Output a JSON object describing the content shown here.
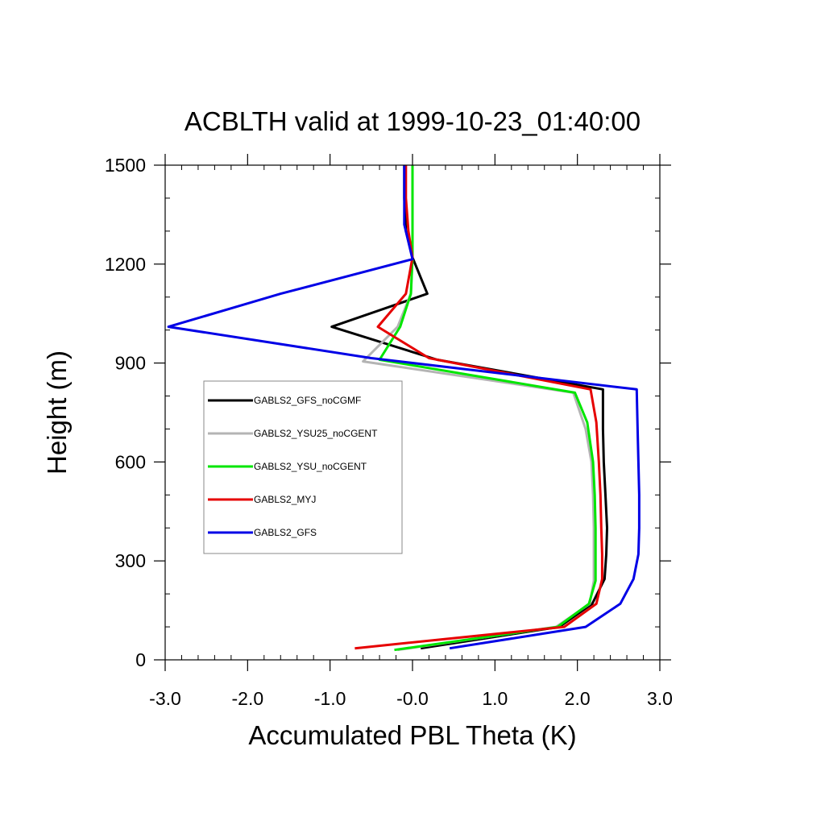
{
  "chart_data": {
    "type": "line",
    "title": "ACBLTH valid at 1999-10-23_01:40:00",
    "xlabel": "Accumulated PBL Theta (K)",
    "ylabel": "Height (m)",
    "xlim": [
      -3.0,
      3.0
    ],
    "ylim": [
      0,
      1500
    ],
    "x_ticks": [
      -3.0,
      -2.0,
      -1.0,
      -0.0,
      1.0,
      2.0,
      3.0
    ],
    "x_tick_labels": [
      "-3.0",
      "-2.0",
      "-1.0",
      "-0.0",
      "1.0",
      "2.0",
      "3.0"
    ],
    "y_ticks": [
      0,
      300,
      600,
      900,
      1200,
      1500
    ],
    "y_tick_labels": [
      "0",
      "300",
      "600",
      "900",
      "1200",
      "1500"
    ],
    "grid": false,
    "legend_position": "left-middle",
    "series": [
      {
        "name": "GABLS2_GFS_noCGMF",
        "color": "#000000",
        "points": [
          [
            0.1,
            35
          ],
          [
            1.78,
            100
          ],
          [
            2.18,
            170
          ],
          [
            2.33,
            245
          ],
          [
            2.35,
            320
          ],
          [
            2.36,
            400
          ],
          [
            2.34,
            500
          ],
          [
            2.32,
            600
          ],
          [
            2.31,
            700
          ],
          [
            2.31,
            820
          ],
          [
            0.3,
            910
          ],
          [
            -0.98,
            1010
          ],
          [
            0.18,
            1110
          ],
          [
            0.0,
            1220
          ],
          [
            -0.08,
            1300
          ],
          [
            -0.1,
            1400
          ],
          [
            -0.1,
            1500
          ]
        ]
      },
      {
        "name": "GABLS2_YSU25_noCGENT",
        "color": "#b4b4b4",
        "points": [
          [
            -0.18,
            30
          ],
          [
            1.74,
            100
          ],
          [
            2.15,
            170
          ],
          [
            2.2,
            240
          ],
          [
            2.2,
            320
          ],
          [
            2.2,
            400
          ],
          [
            2.19,
            500
          ],
          [
            2.17,
            600
          ],
          [
            2.1,
            700
          ],
          [
            1.95,
            810
          ],
          [
            -0.6,
            905
          ],
          [
            -0.18,
            1010
          ],
          [
            -0.02,
            1110
          ],
          [
            0.0,
            1220
          ],
          [
            0.0,
            1300
          ],
          [
            0.0,
            1400
          ],
          [
            0.0,
            1500
          ]
        ]
      },
      {
        "name": "GABLS2_YSU_noCGENT",
        "color": "#00e600",
        "points": [
          [
            -0.22,
            30
          ],
          [
            1.76,
            100
          ],
          [
            2.14,
            170
          ],
          [
            2.22,
            240
          ],
          [
            2.22,
            320
          ],
          [
            2.22,
            400
          ],
          [
            2.21,
            500
          ],
          [
            2.19,
            600
          ],
          [
            2.12,
            720
          ],
          [
            1.97,
            810
          ],
          [
            -0.4,
            910
          ],
          [
            -0.15,
            1010
          ],
          [
            -0.02,
            1110
          ],
          [
            0.0,
            1220
          ],
          [
            0.0,
            1300
          ],
          [
            0.0,
            1400
          ],
          [
            0.0,
            1500
          ]
        ]
      },
      {
        "name": "GABLS2_MYJ",
        "color": "#e60000",
        "points": [
          [
            -0.7,
            35
          ],
          [
            1.84,
            100
          ],
          [
            2.23,
            170
          ],
          [
            2.3,
            245
          ],
          [
            2.3,
            320
          ],
          [
            2.29,
            400
          ],
          [
            2.28,
            500
          ],
          [
            2.26,
            600
          ],
          [
            2.23,
            720
          ],
          [
            2.16,
            820
          ],
          [
            0.2,
            915
          ],
          [
            -0.42,
            1010
          ],
          [
            -0.08,
            1110
          ],
          [
            0.0,
            1220
          ],
          [
            -0.05,
            1300
          ],
          [
            -0.08,
            1400
          ],
          [
            -0.08,
            1500
          ]
        ]
      },
      {
        "name": "GABLS2_GFS",
        "color": "#0000e6",
        "points": [
          [
            0.45,
            35
          ],
          [
            2.1,
            100
          ],
          [
            2.52,
            170
          ],
          [
            2.68,
            245
          ],
          [
            2.74,
            320
          ],
          [
            2.75,
            400
          ],
          [
            2.75,
            500
          ],
          [
            2.74,
            600
          ],
          [
            2.73,
            700
          ],
          [
            2.72,
            820
          ],
          [
            -0.5,
            915
          ],
          [
            -2.96,
            1010
          ],
          [
            -1.6,
            1110
          ],
          [
            0.0,
            1215
          ],
          [
            -0.1,
            1320
          ],
          [
            -0.1,
            1400
          ],
          [
            -0.1,
            1500
          ]
        ]
      }
    ]
  }
}
